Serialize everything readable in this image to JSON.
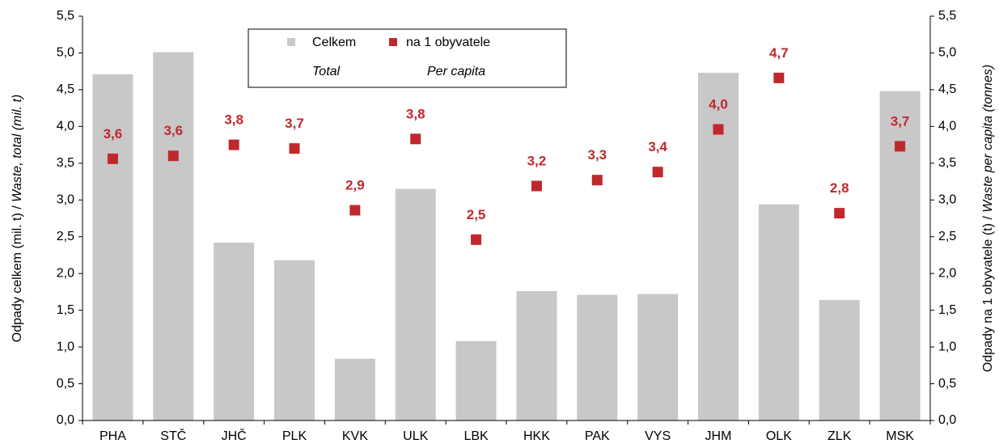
{
  "chart_data": {
    "type": "bar_scatter",
    "categories": [
      "PHA",
      "STČ",
      "JHČ",
      "PLK",
      "KVK",
      "ULK",
      "LBK",
      "HKK",
      "PAK",
      "VYS",
      "JHM",
      "OLK",
      "ZLK",
      "MSK"
    ],
    "series": [
      {
        "name": "Celkem",
        "color": "#c8c8c8",
        "values": [
          4.71,
          5.01,
          2.42,
          2.18,
          0.84,
          3.15,
          1.08,
          1.76,
          1.71,
          1.72,
          4.73,
          2.94,
          1.64,
          4.48
        ]
      },
      {
        "name": "na 1 obyvatele",
        "color": "#c0282d",
        "axis": "y2",
        "values": [
          3.56,
          3.6,
          3.75,
          3.7,
          2.86,
          3.83,
          2.46,
          3.19,
          3.27,
          3.38,
          3.96,
          4.66,
          2.82,
          3.73
        ],
        "value_labels": [
          "3,6",
          "3,6",
          "3,8",
          "3,7",
          "2,9",
          "3,8",
          "2,5",
          "3,2",
          "3,3",
          "3,4",
          "4,0",
          "4,7",
          "2,8",
          "3,7"
        ]
      }
    ],
    "legend_sublabels": [
      "Total",
      "Per capita"
    ],
    "y_label": [
      "Odpady celkem (mil. t) / ",
      "Waste, total (mil. t)"
    ],
    "y2_label": [
      "Odpady na 1 obyvatele (t) / ",
      "Waste per capita (tonnes)"
    ],
    "ylim": [
      0,
      5.5
    ],
    "yticks": [
      {
        "value": 0,
        "label": "0,0"
      },
      {
        "value": 0.5,
        "label": "0,5"
      },
      {
        "value": 1,
        "label": "1,0"
      },
      {
        "value": 1.5,
        "label": "1,5"
      },
      {
        "value": 2,
        "label": "2,0"
      },
      {
        "value": 2.5,
        "label": "2,5"
      },
      {
        "value": 3,
        "label": "3,0"
      },
      {
        "value": 3.5,
        "label": "3,5"
      },
      {
        "value": 4,
        "label": "4,0"
      },
      {
        "value": 4.5,
        "label": "4,5"
      },
      {
        "value": 5,
        "label": "5,0"
      },
      {
        "value": 5.5,
        "label": "5,5"
      }
    ],
    "y2lim": [
      0,
      5.5
    ],
    "y2ticks": [
      {
        "value": 0,
        "label": "0,0"
      },
      {
        "value": 0.5,
        "label": "0,5"
      },
      {
        "value": 1,
        "label": "1,0"
      },
      {
        "value": 1.5,
        "label": "1,5"
      },
      {
        "value": 2,
        "label": "2,0"
      },
      {
        "value": 2.5,
        "label": "2,5"
      },
      {
        "value": 3,
        "label": "3,0"
      },
      {
        "value": 3.5,
        "label": "3,5"
      },
      {
        "value": 4,
        "label": "4,0"
      },
      {
        "value": 4.5,
        "label": "4,5"
      },
      {
        "value": 5,
        "label": "5,0"
      },
      {
        "value": 5.5,
        "label": "5,5"
      }
    ],
    "grid": false
  }
}
